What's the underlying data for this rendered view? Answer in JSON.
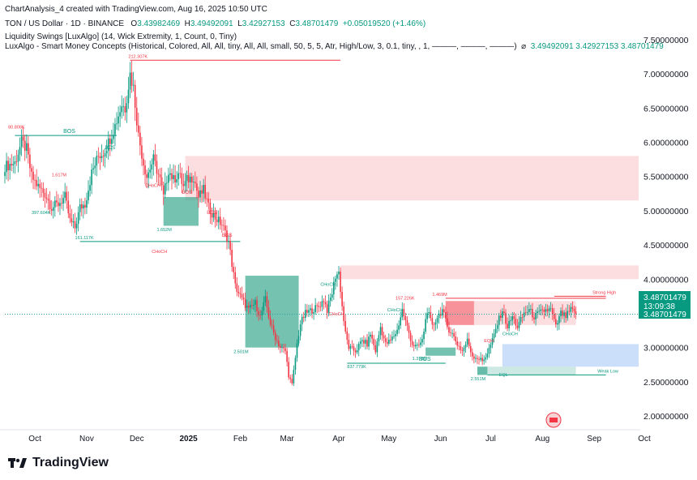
{
  "header": {
    "credit": "ChartAnalysis_4 created with TradingView.com, Aug 16, 2025 10:50 UTC",
    "symbol": "TON / US Dollar · 1D · BINANCE",
    "o_label": "O",
    "o_value": "3.43982469",
    "h_label": "H",
    "h_value": "3.49492091",
    "l_label": "L",
    "l_value": "3.42927153",
    "c_label": "C",
    "c_value": "3.48701479",
    "change": "+0.05019520 (+1.46%)",
    "indicator1": "Liquidity Swings [LuxAlgo] (14, Wick Extremity, 1, Count, 0, Tiny)",
    "indicator2": "LuxAlgo - Smart Money Concepts (Historical, Colored, All, All, tiny, All, All, small, 50, 5, 5, Atr, High/Low, 3, 0.1, tiny, , 1, ———, ———, ———)",
    "indicator2_values": "3.49492091   3.42927153   3.48701479"
  },
  "price_tag": {
    "price": "3.48701479",
    "countdown": "13:09:38",
    "price2": "3.48701479"
  },
  "brand": {
    "name": "TradingView"
  },
  "colors": {
    "up": "#089981",
    "down": "#f23645",
    "supply_zone": "#f7a1a6",
    "demand_zone": "#3aa890",
    "blue_zone": "#a9c8f7",
    "price_line": "#26a69a"
  },
  "chart_data": {
    "type": "candlestick",
    "title": "TON / US Dollar · 1D · BINANCE",
    "ylim": [
      1.85,
      7.9
    ],
    "y_ticks": [
      "7.50000000",
      "7.00000000",
      "6.50000000",
      "6.00000000",
      "5.50000000",
      "5.00000000",
      "4.50000000",
      "4.00000000",
      "3.50000000",
      "3.00000000",
      "2.50000000",
      "2.00000000"
    ],
    "y_tick_values": [
      7.5,
      7.0,
      6.5,
      6.0,
      5.5,
      5.0,
      4.5,
      4.0,
      3.5,
      3.0,
      2.5,
      2.0
    ],
    "x_ticks": [
      "Oct",
      "Nov",
      "Dec",
      "2025",
      "Feb",
      "Mar",
      "Apr",
      "May",
      "Jun",
      "Jul",
      "Aug",
      "Sep",
      "Oct"
    ],
    "x_tick_days": [
      18,
      49,
      79,
      110,
      141,
      169,
      200,
      230,
      261,
      291,
      322,
      353,
      383
    ],
    "last_price": 3.48701479,
    "anchors": [
      [
        0,
        5.65
      ],
      [
        6,
        5.7
      ],
      [
        10,
        6.0
      ],
      [
        13,
        5.9
      ],
      [
        16,
        5.5
      ],
      [
        20,
        5.35
      ],
      [
        24,
        5.25
      ],
      [
        28,
        5.05
      ],
      [
        32,
        5.1
      ],
      [
        36,
        5.2
      ],
      [
        39,
        4.85
      ],
      [
        42,
        4.75
      ],
      [
        45,
        5.05
      ],
      [
        48,
        5.1
      ],
      [
        52,
        5.55
      ],
      [
        56,
        5.8
      ],
      [
        59,
        5.85
      ],
      [
        62,
        6.0
      ],
      [
        66,
        6.25
      ],
      [
        70,
        6.55
      ],
      [
        72,
        6.5
      ],
      [
        75,
        7.0
      ],
      [
        77,
        6.8
      ],
      [
        80,
        6.1
      ],
      [
        83,
        5.7
      ],
      [
        85,
        5.5
      ],
      [
        89,
        5.75
      ],
      [
        93,
        5.45
      ],
      [
        95,
        5.2
      ],
      [
        98,
        5.6
      ],
      [
        101,
        5.45
      ],
      [
        104,
        5.55
      ],
      [
        107,
        5.35
      ],
      [
        109,
        5.45
      ],
      [
        113,
        5.5
      ],
      [
        116,
        5.2
      ],
      [
        119,
        5.3
      ],
      [
        122,
        5.05
      ],
      [
        126,
        4.9
      ],
      [
        130,
        4.8
      ],
      [
        134,
        4.55
      ],
      [
        138,
        3.9
      ],
      [
        142,
        3.7
      ],
      [
        146,
        3.55
      ],
      [
        150,
        3.65
      ],
      [
        153,
        3.45
      ],
      [
        156,
        3.7
      ],
      [
        159,
        3.35
      ],
      [
        162,
        3.15
      ],
      [
        165,
        3.0
      ],
      [
        168,
        2.95
      ],
      [
        170,
        2.6
      ],
      [
        172,
        2.45
      ],
      [
        175,
        3.05
      ],
      [
        177,
        3.35
      ],
      [
        180,
        3.5
      ],
      [
        184,
        3.55
      ],
      [
        188,
        3.6
      ],
      [
        191,
        3.7
      ],
      [
        193,
        3.55
      ],
      [
        196,
        3.8
      ],
      [
        198,
        4.05
      ],
      [
        200,
        4.1
      ],
      [
        202,
        3.6
      ],
      [
        204,
        3.2
      ],
      [
        206,
        3.0
      ],
      [
        210,
        2.95
      ],
      [
        214,
        3.1
      ],
      [
        217,
        3.05
      ],
      [
        219,
        3.2
      ],
      [
        222,
        2.95
      ],
      [
        225,
        3.3
      ],
      [
        228,
        3.05
      ],
      [
        231,
        3.1
      ],
      [
        235,
        3.25
      ],
      [
        238,
        3.55
      ],
      [
        241,
        3.3
      ],
      [
        244,
        3.05
      ],
      [
        247,
        3.0
      ],
      [
        250,
        3.1
      ],
      [
        253,
        3.55
      ],
      [
        256,
        3.3
      ],
      [
        259,
        3.45
      ],
      [
        262,
        3.55
      ],
      [
        265,
        3.3
      ],
      [
        268,
        3.2
      ],
      [
        271,
        3.05
      ],
      [
        274,
        2.95
      ],
      [
        277,
        3.1
      ],
      [
        280,
        2.88
      ],
      [
        283,
        2.85
      ],
      [
        286,
        2.8
      ],
      [
        289,
        2.92
      ],
      [
        292,
        3.1
      ],
      [
        295,
        3.35
      ],
      [
        298,
        3.55
      ],
      [
        301,
        3.3
      ],
      [
        304,
        3.45
      ],
      [
        307,
        3.3
      ],
      [
        311,
        3.5
      ],
      [
        314,
        3.55
      ],
      [
        317,
        3.45
      ],
      [
        320,
        3.5
      ],
      [
        324,
        3.55
      ],
      [
        327,
        3.55
      ],
      [
        330,
        3.3
      ],
      [
        333,
        3.5
      ],
      [
        336,
        3.45
      ],
      [
        339,
        3.55
      ],
      [
        342,
        3.487
      ]
    ],
    "zones": [
      {
        "kind": "supply",
        "x1": 108,
        "x2": 408,
        "y1": 5.15,
        "y2": 5.8
      },
      {
        "kind": "supply",
        "x1": 201,
        "x2": 408,
        "y1": 4.0,
        "y2": 4.2
      },
      {
        "kind": "supply",
        "x1": 264,
        "x2": 342,
        "y1": 3.33,
        "y2": 3.68
      },
      {
        "kind": "supply_strong",
        "x1": 264,
        "x2": 281,
        "y1": 3.33,
        "y2": 3.68
      },
      {
        "kind": "blue",
        "x1": 298,
        "x2": 408,
        "y1": 2.72,
        "y2": 3.05
      },
      {
        "kind": "demand",
        "x1": 95,
        "x2": 116,
        "y1": 4.78,
        "y2": 5.2
      },
      {
        "kind": "demand",
        "x1": 144,
        "x2": 176,
        "y1": 3.0,
        "y2": 4.05
      },
      {
        "kind": "demand",
        "x1": 252,
        "x2": 270,
        "y1": 2.88,
        "y2": 3.0
      },
      {
        "kind": "demand_light",
        "x1": 283,
        "x2": 342,
        "y1": 2.6,
        "y2": 2.72
      },
      {
        "kind": "demand",
        "x1": 283,
        "x2": 289,
        "y1": 2.6,
        "y2": 2.72
      }
    ],
    "levels": [
      {
        "x1": 75,
        "x2": 201,
        "y": 7.2,
        "color": "#f23645",
        "label": "212.307K",
        "lx": 74
      },
      {
        "x1": 6,
        "x2": 67,
        "y": 6.1,
        "color": "#089981",
        "label": "BOS",
        "lx": 35
      },
      {
        "x1": 45,
        "x2": 141,
        "y": 4.55,
        "color": "#089981",
        "label": "161.117K",
        "lx": 42
      },
      {
        "x1": 205,
        "x2": 264,
        "y": 2.77,
        "color": "#089981",
        "label": "BOS",
        "lx": 248
      },
      {
        "x1": 264,
        "x2": 360,
        "y": 3.72,
        "color": "#f23645",
        "label": "1.469M",
        "lx": 256
      },
      {
        "x1": 329,
        "x2": 360,
        "y": 3.75,
        "color": "#f23645",
        "label": "Strong High",
        "lx": 352
      },
      {
        "x1": 289,
        "x2": 360,
        "y": 2.6,
        "color": "#089981",
        "label": "Weak Low",
        "lx": 355
      }
    ],
    "annotations": [
      {
        "text": "80.808K",
        "d": 2,
        "v": 6.2,
        "c": "#f23645"
      },
      {
        "text": "1.617M",
        "d": 28,
        "v": 5.5,
        "c": "#f23645"
      },
      {
        "text": "397.604K",
        "d": 16,
        "v": 4.95,
        "c": "#089981"
      },
      {
        "text": "BOS",
        "d": 60,
        "v": 5.9,
        "c": "#089981"
      },
      {
        "text": "CHoCH",
        "d": 84,
        "v": 5.35,
        "c": "#f23645"
      },
      {
        "text": "BOS",
        "d": 106,
        "v": 5.25,
        "c": "#f23645"
      },
      {
        "text": "1.652M",
        "d": 91,
        "v": 4.7,
        "c": "#089981"
      },
      {
        "text": "BOS",
        "d": 121,
        "v": 4.95,
        "c": "#f23645"
      },
      {
        "text": "BOS",
        "d": 130,
        "v": 4.62,
        "c": "#f23645"
      },
      {
        "text": "CHoCH",
        "d": 88,
        "v": 4.38,
        "c": "#f23645"
      },
      {
        "text": "CHoCH",
        "d": 189,
        "v": 3.9,
        "c": "#089981"
      },
      {
        "text": "CHoCH",
        "d": 194,
        "v": 3.47,
        "c": "#f23645"
      },
      {
        "text": "2.501M",
        "d": 137,
        "v": 2.92,
        "c": "#089981"
      },
      {
        "text": "157.226K",
        "d": 234,
        "v": 3.7,
        "c": "#f23645"
      },
      {
        "text": "CHoCH",
        "d": 229,
        "v": 3.53,
        "c": "#089981"
      },
      {
        "text": "837.779K",
        "d": 205,
        "v": 2.7,
        "c": "#089981"
      },
      {
        "text": "1.378M",
        "d": 244,
        "v": 2.82,
        "c": "#089981"
      },
      {
        "text": "EQH",
        "d": 287,
        "v": 3.08,
        "c": "#f23645"
      },
      {
        "text": "CHoCH",
        "d": 298,
        "v": 3.18,
        "c": "#089981"
      },
      {
        "text": "2.551M",
        "d": 279,
        "v": 2.52,
        "c": "#089981"
      },
      {
        "text": "EQL",
        "d": 296,
        "v": 2.58,
        "c": "#089981"
      }
    ]
  }
}
